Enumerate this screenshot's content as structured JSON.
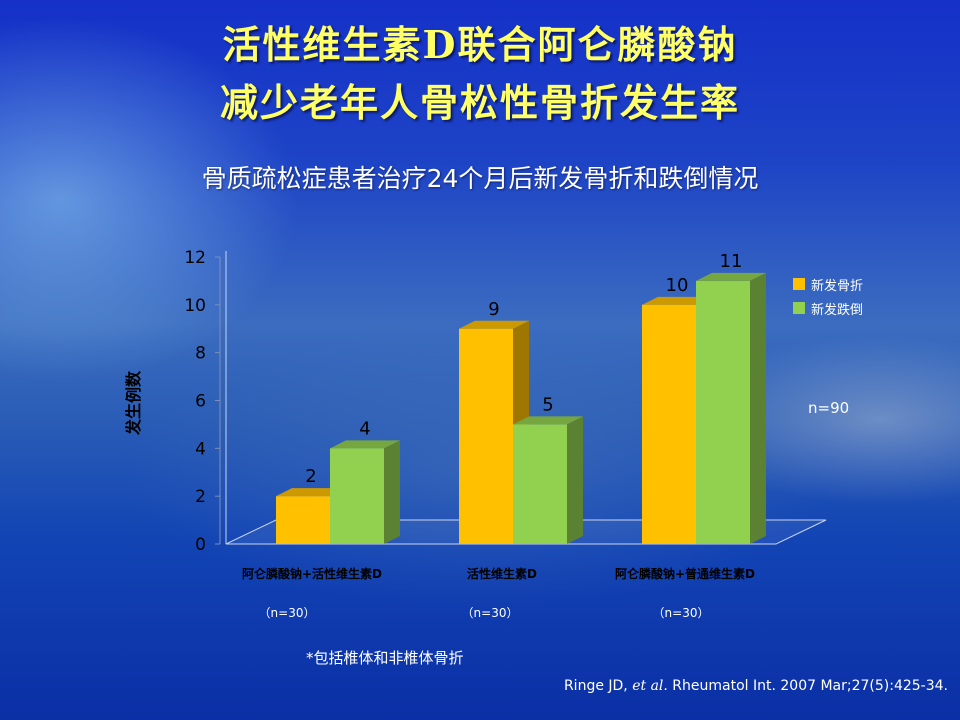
{
  "slide": {
    "title_line1": "活性维生素D联合阿仑膦酸钠",
    "title_line2": "减少老年人骨松性骨折发生率",
    "subtitle": "骨质疏松症患者治疗24个月后新发骨折和跌倒情况",
    "n_total": "n=90",
    "footnote": "*包括椎体和非椎体骨折",
    "citation_author": "Ringe JD, ",
    "citation_etal": "et al.",
    "citation_rest": " Rheumatol Int. 2007 Mar;27(5):425-34."
  },
  "group_counts": [
    "（n=30）",
    "（n=30）",
    "（n=30）"
  ],
  "colors": {
    "series1": "#ffc000",
    "series2": "#92d050",
    "title": "#ffff66"
  },
  "chart_data": {
    "type": "bar",
    "categories": [
      "阿仑膦酸钠+活性维生素D",
      "活性维生素D",
      "阿仑膦酸钠+普通维生素D"
    ],
    "series": [
      {
        "name": "新发骨折",
        "values": [
          2,
          9,
          10
        ]
      },
      {
        "name": "新发跌倒",
        "values": [
          4,
          5,
          11
        ]
      }
    ],
    "ylabel": "发生例数",
    "yticks": [
      "0",
      "2",
      "4",
      "6",
      "8",
      "10",
      "12"
    ],
    "ylim": [
      0,
      12
    ],
    "legend_position": "right",
    "grid": false
  }
}
